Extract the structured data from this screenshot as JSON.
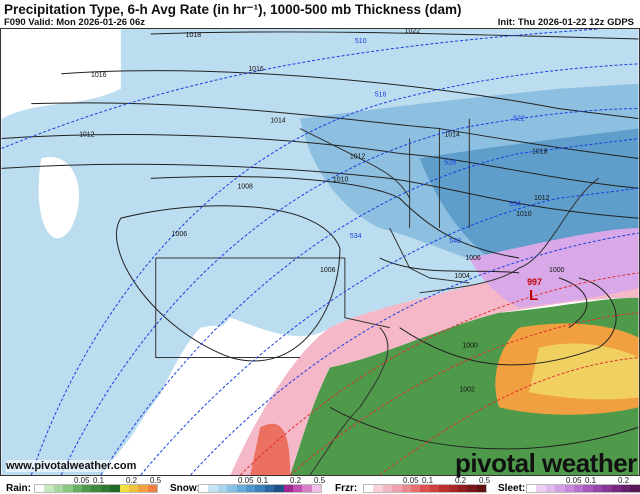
{
  "header": {
    "title": "Precipitation Type, 6-h Avg Rate (in hr⁻¹), 1000-500 mb Thickness (dam)",
    "valid": "F090 Valid: Mon 2026-01-26 06z",
    "init": "Init: Thu 2026-01-22 12z GDPS"
  },
  "map": {
    "pressure_labels": [
      "1022",
      "1018",
      "1016",
      "1016",
      "1014",
      "1014",
      "1012",
      "1012",
      "1012",
      "1010",
      "1010",
      "1008",
      "1006",
      "1006",
      "1006",
      "1004",
      "1000",
      "1000",
      "1002",
      "1018"
    ],
    "thickness_labels": [
      "510",
      "516",
      "522",
      "528",
      "534",
      "534",
      "540"
    ],
    "low": {
      "label": "L",
      "value": "997"
    },
    "colors": {
      "snow": "#bcdcf0",
      "snow_heavy": "#4f8fbf",
      "rain": "#3f8f47",
      "rain_heavy": "#f0c040",
      "frzr": "#f4b8c8",
      "sleet": "#d9a8e8",
      "thickness": "#1a3fe0",
      "thickness_warm": "#e03030",
      "isobar": "#222222"
    }
  },
  "watermark": {
    "url": "www.pivotalweather.com",
    "brand": "pivotal weather"
  },
  "legend": [
    {
      "label": "Rain:",
      "ticks": [
        "0.05",
        "0.1",
        "0.2",
        "0.5"
      ],
      "colors": [
        "#ffffff",
        "#c8e8c0",
        "#a8d8a0",
        "#88c880",
        "#68b060",
        "#4f9a4a",
        "#3f8a3e",
        "#2f7a32",
        "#206a26",
        "#f0e040",
        "#f0c040",
        "#f0a040",
        "#f08040"
      ]
    },
    {
      "label": "Snow:",
      "ticks": [
        "0.05",
        "0.1",
        "0.2",
        "0.5"
      ],
      "colors": [
        "#ffffff",
        "#c8e4f4",
        "#a8d4ee",
        "#88c0e4",
        "#68acd8",
        "#4f98cc",
        "#3c80b8",
        "#2c68a0",
        "#1f5088",
        "#a02890",
        "#c050b0",
        "#d880c8",
        "#f0c0e8"
      ]
    },
    {
      "label": "Frzr:",
      "ticks": [
        "0.05",
        "0.1",
        "0.2",
        "0.5"
      ],
      "colors": [
        "#ffffff",
        "#f8d0d8",
        "#f4b8c4",
        "#f0a0b0",
        "#ec8890",
        "#e87070",
        "#e05050",
        "#d04040",
        "#c03030",
        "#a82828",
        "#902020",
        "#781818",
        "#601010"
      ]
    },
    {
      "label": "Sleet:",
      "ticks": [
        "0.05",
        "0.1",
        "0.2",
        "0.5"
      ],
      "colors": [
        "#ffffff",
        "#ecd0f4",
        "#e0b8ec",
        "#d4a0e4",
        "#c888dc",
        "#b870cc",
        "#a858bc",
        "#9848a8",
        "#883894",
        "#782880",
        "#68206c",
        "#581858",
        "#481048"
      ]
    }
  ]
}
